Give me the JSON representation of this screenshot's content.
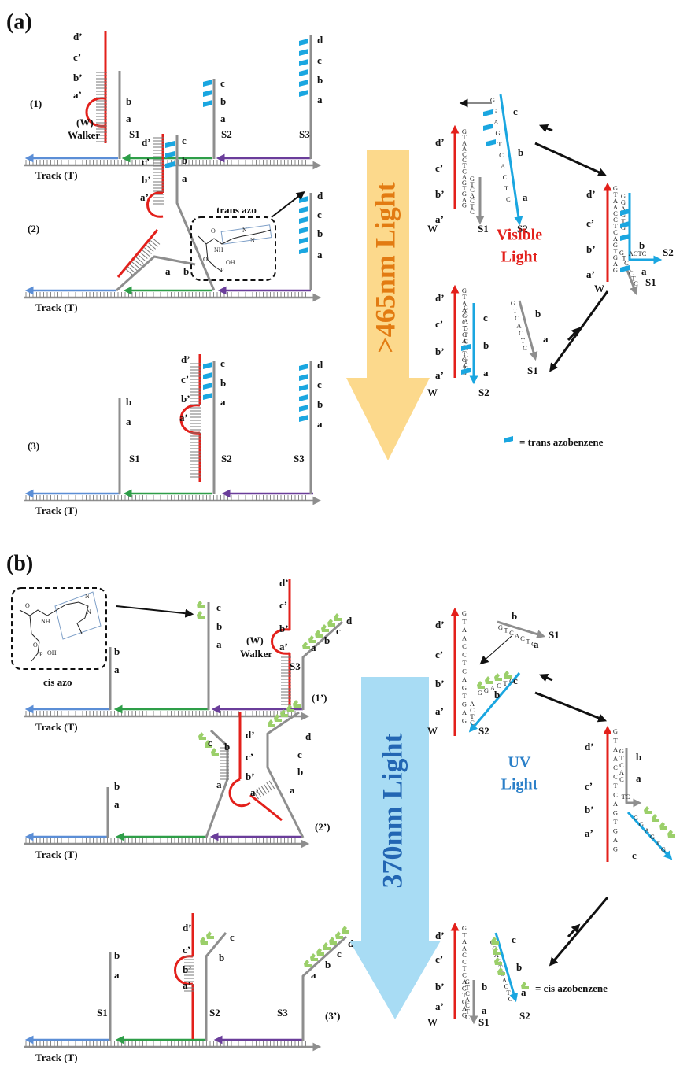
{
  "panel_a": {
    "label": "(a)",
    "state_1": {
      "number": "(1)",
      "walker": "(W)",
      "walker_name": "Walker",
      "walker_domains": [
        "d’",
        "c’",
        "b’",
        "a’"
      ],
      "s1_domains": [
        "b",
        "a"
      ],
      "s2_domains": [
        "c",
        "b",
        "a"
      ],
      "s3_domains": [
        "d",
        "c",
        "b",
        "a"
      ],
      "strands": [
        "S1",
        "S2",
        "S3"
      ],
      "track": "Track (T)"
    },
    "state_2": {
      "number": "(2)",
      "walker_domains": [
        "d’",
        "c’",
        "b’",
        "a’"
      ],
      "s2_domains": [
        "c",
        "b",
        "a"
      ],
      "s1_domains": [
        "a",
        "b"
      ],
      "s3_domains": [
        "d",
        "c",
        "b",
        "a"
      ],
      "azo_label": "trans azo",
      "azo_atoms": [
        "O",
        "NH",
        "O",
        "OH",
        "P",
        "N",
        "N"
      ],
      "track": "Track (T)"
    },
    "state_3": {
      "number": "(3)",
      "s1_domains": [
        "b",
        "a"
      ],
      "walker_domains": [
        "d’",
        "c’",
        "b’",
        "a’"
      ],
      "s2_domains": [
        "c",
        "b",
        "a"
      ],
      "s3_domains": [
        "d",
        "c",
        "b",
        "a"
      ],
      "strands": [
        "S1",
        "S2",
        "S3"
      ],
      "track": "Track (T)"
    },
    "light": ">465nm Light",
    "light_type": [
      "Visible",
      "Light"
    ],
    "cycle": {
      "step_1": {
        "walker_seq": "GTAACCTCAGTGAG",
        "walker_domains": [
          "d’",
          "c’",
          "b’",
          "a’"
        ],
        "s1_seq": "GTCACTC",
        "s2_seq": "GGAGTCACTC",
        "s2_domains": [
          "c",
          "b",
          "a"
        ],
        "strands": [
          "W",
          "S1",
          "S2"
        ]
      },
      "step_2": {
        "walker_seq": "GTAACCTCAGTGAG",
        "walker_domains": [
          "d’",
          "c’",
          "b’",
          "a’"
        ],
        "s2_seq": "GGAGTG",
        "s2_tail": "ACTC",
        "s1_seq": "GTCACTC",
        "domains": [
          "b",
          "a"
        ],
        "strands": [
          "W",
          "S2",
          "S1"
        ]
      },
      "step_3": {
        "walker_seq": "GTAACCTCAGTGAG",
        "walker_domains": [
          "d’",
          "c’",
          "b’",
          "a’"
        ],
        "s2_seq": "GGAGTCACTC",
        "s2_domains": [
          "c",
          "b",
          "a"
        ],
        "s1_seq": "GTCACTC",
        "s1_domains": [
          "b",
          "a"
        ],
        "strands": [
          "W",
          "S2",
          "S1"
        ]
      }
    },
    "legend": "=  trans azobenzene"
  },
  "panel_b": {
    "label": "(b)",
    "state_1": {
      "number": "(1’)",
      "walker": "(W)",
      "walker_name": "Walker",
      "walker_domains": [
        "d’",
        "c’",
        "b’",
        "a’"
      ],
      "s1_domains": [
        "b",
        "a"
      ],
      "s2_domains": [
        "c",
        "b",
        "a"
      ],
      "s3_domains": [
        "d",
        "c",
        "b",
        "a"
      ],
      "strands": [
        "S3"
      ],
      "azo_label": "cis azo",
      "azo_atoms": [
        "O",
        "NH",
        "N",
        "N",
        "O",
        "P",
        "OH"
      ],
      "track": "Track (T)"
    },
    "state_2": {
      "number": "(2’)",
      "walker_domains": [
        "d’",
        "c’",
        "b’",
        "a’"
      ],
      "s1_domains": [
        "b",
        "a"
      ],
      "s2_domains": [
        "c",
        "b",
        "a"
      ],
      "s3_domains": [
        "d",
        "c",
        "b",
        "a"
      ],
      "track": "Track (T)"
    },
    "state_3": {
      "number": "(3’)",
      "s1_domains": [
        "b",
        "a"
      ],
      "walker_domains": [
        "d’",
        "c’",
        "b’",
        "a’"
      ],
      "s2_domains": [
        "c",
        "b"
      ],
      "s3_domains": [
        "d",
        "c",
        "b",
        "a"
      ],
      "strands": [
        "S1",
        "S2",
        "S3"
      ],
      "track": "Track (T)"
    },
    "light": "370nm Light",
    "light_type": [
      "UV",
      "Light"
    ],
    "cycle": {
      "step_1": {
        "walker_seq": "GTAACCTCAGTGAG",
        "walker_domains": [
          "d’",
          "c’",
          "b’",
          "a’"
        ],
        "s1_seq": "GTCACTC",
        "s1_domains": [
          "b",
          "a"
        ],
        "s2_seq": "CTCAGG",
        "s2_domains": [
          "c",
          "b"
        ],
        "s2_stem": "ACTC",
        "strands": [
          "W",
          "S2",
          "S1"
        ]
      },
      "step_2": {
        "walker_seq": "GTAACCTCAGTGAG",
        "walker_domains": [
          "d’",
          "c’",
          "b’",
          "a’"
        ],
        "s1_seq": "GTCAC",
        "s1_tail": "TC",
        "s1_domains": [
          "b",
          "a"
        ],
        "s2_seq": "GGAGTG",
        "s2_domains": [
          "c"
        ]
      },
      "step_3": {
        "walker_seq": "GTAACCTCAGTGAG",
        "walker_domains": [
          "d’",
          "c’",
          "b’",
          "a’"
        ],
        "s1_seq": "GTCACTC",
        "s1_domains": [
          "b",
          "a"
        ],
        "s2_seq": "GGAGTCACTC",
        "s2_domains": [
          "c",
          "b",
          "a"
        ],
        "strands": [
          "W",
          "S1",
          "S2"
        ]
      }
    },
    "legend": "=  cis azobenzene"
  }
}
